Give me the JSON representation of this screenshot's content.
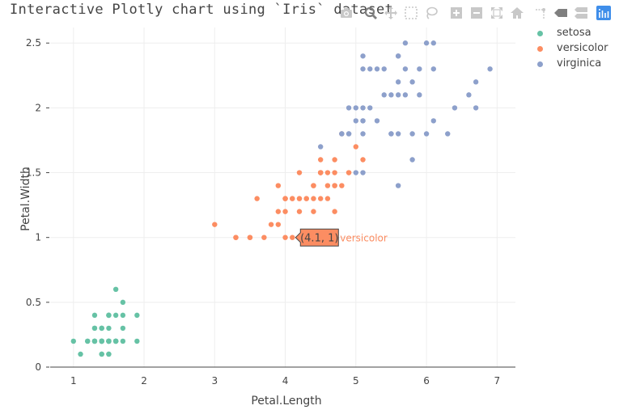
{
  "title": "Interactive Plotly chart using `Iris` dataset",
  "modebar": [
    {
      "name": "camera-icon",
      "title": "Download plot as a png"
    },
    {
      "name": "zoom-icon",
      "title": "Zoom"
    },
    {
      "name": "pan-icon",
      "title": "Pan"
    },
    {
      "name": "box-select-icon",
      "title": "Box Select"
    },
    {
      "name": "lasso-select-icon",
      "title": "Lasso Select"
    },
    {
      "name": "zoom-in-icon",
      "title": "Zoom in"
    },
    {
      "name": "zoom-out-icon",
      "title": "Zoom out"
    },
    {
      "name": "autoscale-icon",
      "title": "Autoscale"
    },
    {
      "name": "home-icon",
      "title": "Reset axes"
    },
    {
      "name": "spike-lines-icon",
      "title": "Toggle Spike Lines"
    },
    {
      "name": "hover-closest-icon",
      "title": "Show closest data on hover"
    },
    {
      "name": "hover-compare-icon",
      "title": "Compare data on hover"
    },
    {
      "name": "plotly-logo-icon",
      "title": "Produced with Plotly"
    }
  ],
  "colors": {
    "setosa": "#66c2a5",
    "versicolor": "#fc8d62",
    "virginica": "#8da0cb",
    "grid": "#eeeeee",
    "axis": "#444444",
    "modebar_icon": "#c8c8c8",
    "modebar_active": "#7f7f7f",
    "plotly_logo": "#3f8eea"
  },
  "hover_label": {
    "text": "(4.1, 1)",
    "series": "versicolor",
    "x": 4.1,
    "y": 1
  },
  "chart_data": {
    "type": "scatter",
    "title": "Interactive Plotly chart using `Iris` dataset",
    "xlabel": "Petal.Length",
    "ylabel": "Petal.Width",
    "xlim": [
      0.67,
      7.26
    ],
    "ylim": [
      0,
      2.62
    ],
    "xticks": [
      "1",
      "2",
      "3",
      "4",
      "5",
      "6",
      "7"
    ],
    "yticks": [
      "0",
      "0.5",
      "1",
      "1.5",
      "2",
      "2.5"
    ],
    "grid": true,
    "legend_position": "top-right",
    "series": [
      {
        "name": "setosa",
        "x": [
          1.4,
          1.4,
          1.3,
          1.5,
          1.4,
          1.7,
          1.4,
          1.5,
          1.4,
          1.5,
          1.5,
          1.6,
          1.4,
          1.1,
          1.2,
          1.5,
          1.3,
          1.4,
          1.7,
          1.5,
          1.7,
          1.5,
          1.0,
          1.7,
          1.9,
          1.6,
          1.6,
          1.5,
          1.4,
          1.6,
          1.6,
          1.5,
          1.5,
          1.4,
          1.5,
          1.2,
          1.3,
          1.4,
          1.3,
          1.5,
          1.3,
          1.3,
          1.3,
          1.6,
          1.9,
          1.4,
          1.6,
          1.4,
          1.5,
          1.4
        ],
        "y": [
          0.2,
          0.2,
          0.2,
          0.2,
          0.2,
          0.4,
          0.3,
          0.2,
          0.2,
          0.1,
          0.2,
          0.2,
          0.1,
          0.1,
          0.2,
          0.4,
          0.4,
          0.3,
          0.3,
          0.3,
          0.2,
          0.4,
          0.2,
          0.5,
          0.2,
          0.2,
          0.4,
          0.2,
          0.2,
          0.2,
          0.2,
          0.4,
          0.1,
          0.2,
          0.2,
          0.2,
          0.2,
          0.1,
          0.2,
          0.2,
          0.3,
          0.3,
          0.2,
          0.6,
          0.4,
          0.3,
          0.2,
          0.2,
          0.2,
          0.2
        ]
      },
      {
        "name": "versicolor",
        "x": [
          4.7,
          4.5,
          4.9,
          4.0,
          4.6,
          4.5,
          4.7,
          3.3,
          4.6,
          3.9,
          3.5,
          4.2,
          4.0,
          4.7,
          3.6,
          4.4,
          4.5,
          4.1,
          4.5,
          3.9,
          4.8,
          4.0,
          4.9,
          4.7,
          4.3,
          4.4,
          4.8,
          5.0,
          4.5,
          3.5,
          3.8,
          3.7,
          3.9,
          5.1,
          4.5,
          4.5,
          4.7,
          4.4,
          4.1,
          4.0,
          4.4,
          4.6,
          4.0,
          3.3,
          4.2,
          4.2,
          4.2,
          4.3,
          3.0,
          4.1
        ],
        "y": [
          1.4,
          1.5,
          1.5,
          1.3,
          1.5,
          1.3,
          1.6,
          1.0,
          1.3,
          1.4,
          1.0,
          1.5,
          1.0,
          1.4,
          1.3,
          1.4,
          1.5,
          1.0,
          1.5,
          1.1,
          1.8,
          1.3,
          1.5,
          1.2,
          1.3,
          1.4,
          1.4,
          1.7,
          1.5,
          1.0,
          1.1,
          1.0,
          1.2,
          1.6,
          1.5,
          1.6,
          1.5,
          1.3,
          1.3,
          1.3,
          1.2,
          1.4,
          1.2,
          1.0,
          1.3,
          1.2,
          1.3,
          1.3,
          1.1,
          1.3
        ]
      },
      {
        "name": "virginica",
        "x": [
          6.0,
          5.1,
          5.9,
          5.6,
          5.8,
          6.6,
          4.5,
          6.3,
          5.8,
          6.1,
          5.1,
          5.3,
          5.5,
          5.0,
          5.1,
          5.3,
          5.5,
          6.7,
          6.9,
          5.0,
          5.7,
          4.9,
          6.7,
          4.9,
          5.7,
          6.0,
          4.8,
          4.9,
          5.6,
          5.8,
          6.1,
          6.4,
          5.6,
          5.1,
          5.6,
          6.1,
          5.6,
          5.5,
          4.8,
          5.4,
          5.6,
          5.1,
          5.1,
          5.9,
          5.7,
          5.2,
          5.0,
          5.2,
          5.4,
          5.1
        ],
        "y": [
          2.5,
          1.9,
          2.1,
          1.8,
          2.2,
          2.1,
          1.7,
          1.8,
          1.8,
          2.5,
          2.0,
          1.9,
          2.1,
          2.0,
          2.4,
          2.3,
          1.8,
          2.2,
          2.3,
          1.5,
          2.3,
          2.0,
          2.0,
          1.8,
          2.1,
          1.8,
          1.8,
          1.8,
          2.1,
          1.6,
          1.9,
          2.0,
          2.2,
          1.5,
          1.4,
          2.3,
          2.4,
          1.8,
          1.8,
          2.1,
          2.4,
          2.3,
          1.9,
          2.3,
          2.5,
          2.3,
          1.9,
          2.0,
          2.3,
          1.8
        ]
      }
    ]
  }
}
